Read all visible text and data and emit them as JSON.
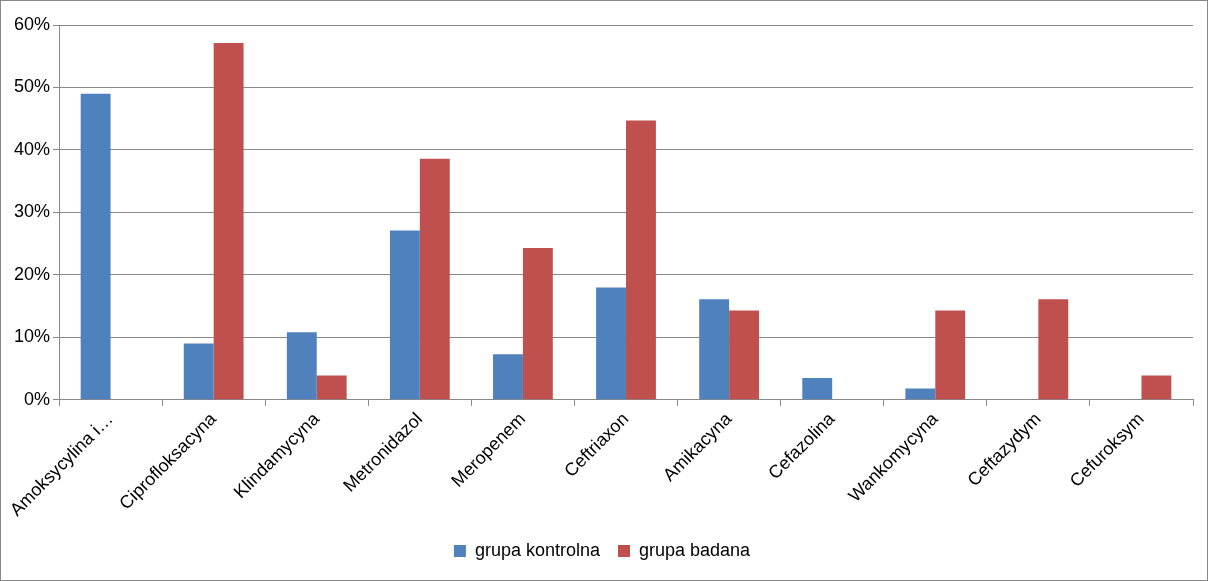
{
  "chart_data": {
    "type": "bar",
    "categories": [
      "Amoksycylina i…",
      "Ciprofloksacyna",
      "Klindamycyna",
      "Metronidazol",
      "Meropenem",
      "Ceftriaxon",
      "Amikacyna",
      "Cefazolina",
      "Wankomycyna",
      "Ceftazydym",
      "Cefuroksym"
    ],
    "series": [
      {
        "name": "grupa kontrolna",
        "color": "#4f81bd",
        "values": [
          49.0,
          9.0,
          10.8,
          27.1,
          7.3,
          18.0,
          16.1,
          3.5,
          1.8,
          0,
          0
        ]
      },
      {
        "name": "grupa badana",
        "color": "#c0504d",
        "values": [
          0,
          57.1,
          3.9,
          38.6,
          24.3,
          44.7,
          14.3,
          0,
          14.3,
          16.1,
          3.9
        ]
      }
    ],
    "ylim": [
      0,
      60
    ],
    "yticks": [
      {
        "value": 0,
        "label": "0%"
      },
      {
        "value": 10,
        "label": "10%"
      },
      {
        "value": 20,
        "label": "20%"
      },
      {
        "value": 30,
        "label": "30%"
      },
      {
        "value": 40,
        "label": "40%"
      },
      {
        "value": 50,
        "label": "50%"
      },
      {
        "value": 60,
        "label": "60%"
      }
    ],
    "grid": "y",
    "legend": "bottom"
  }
}
